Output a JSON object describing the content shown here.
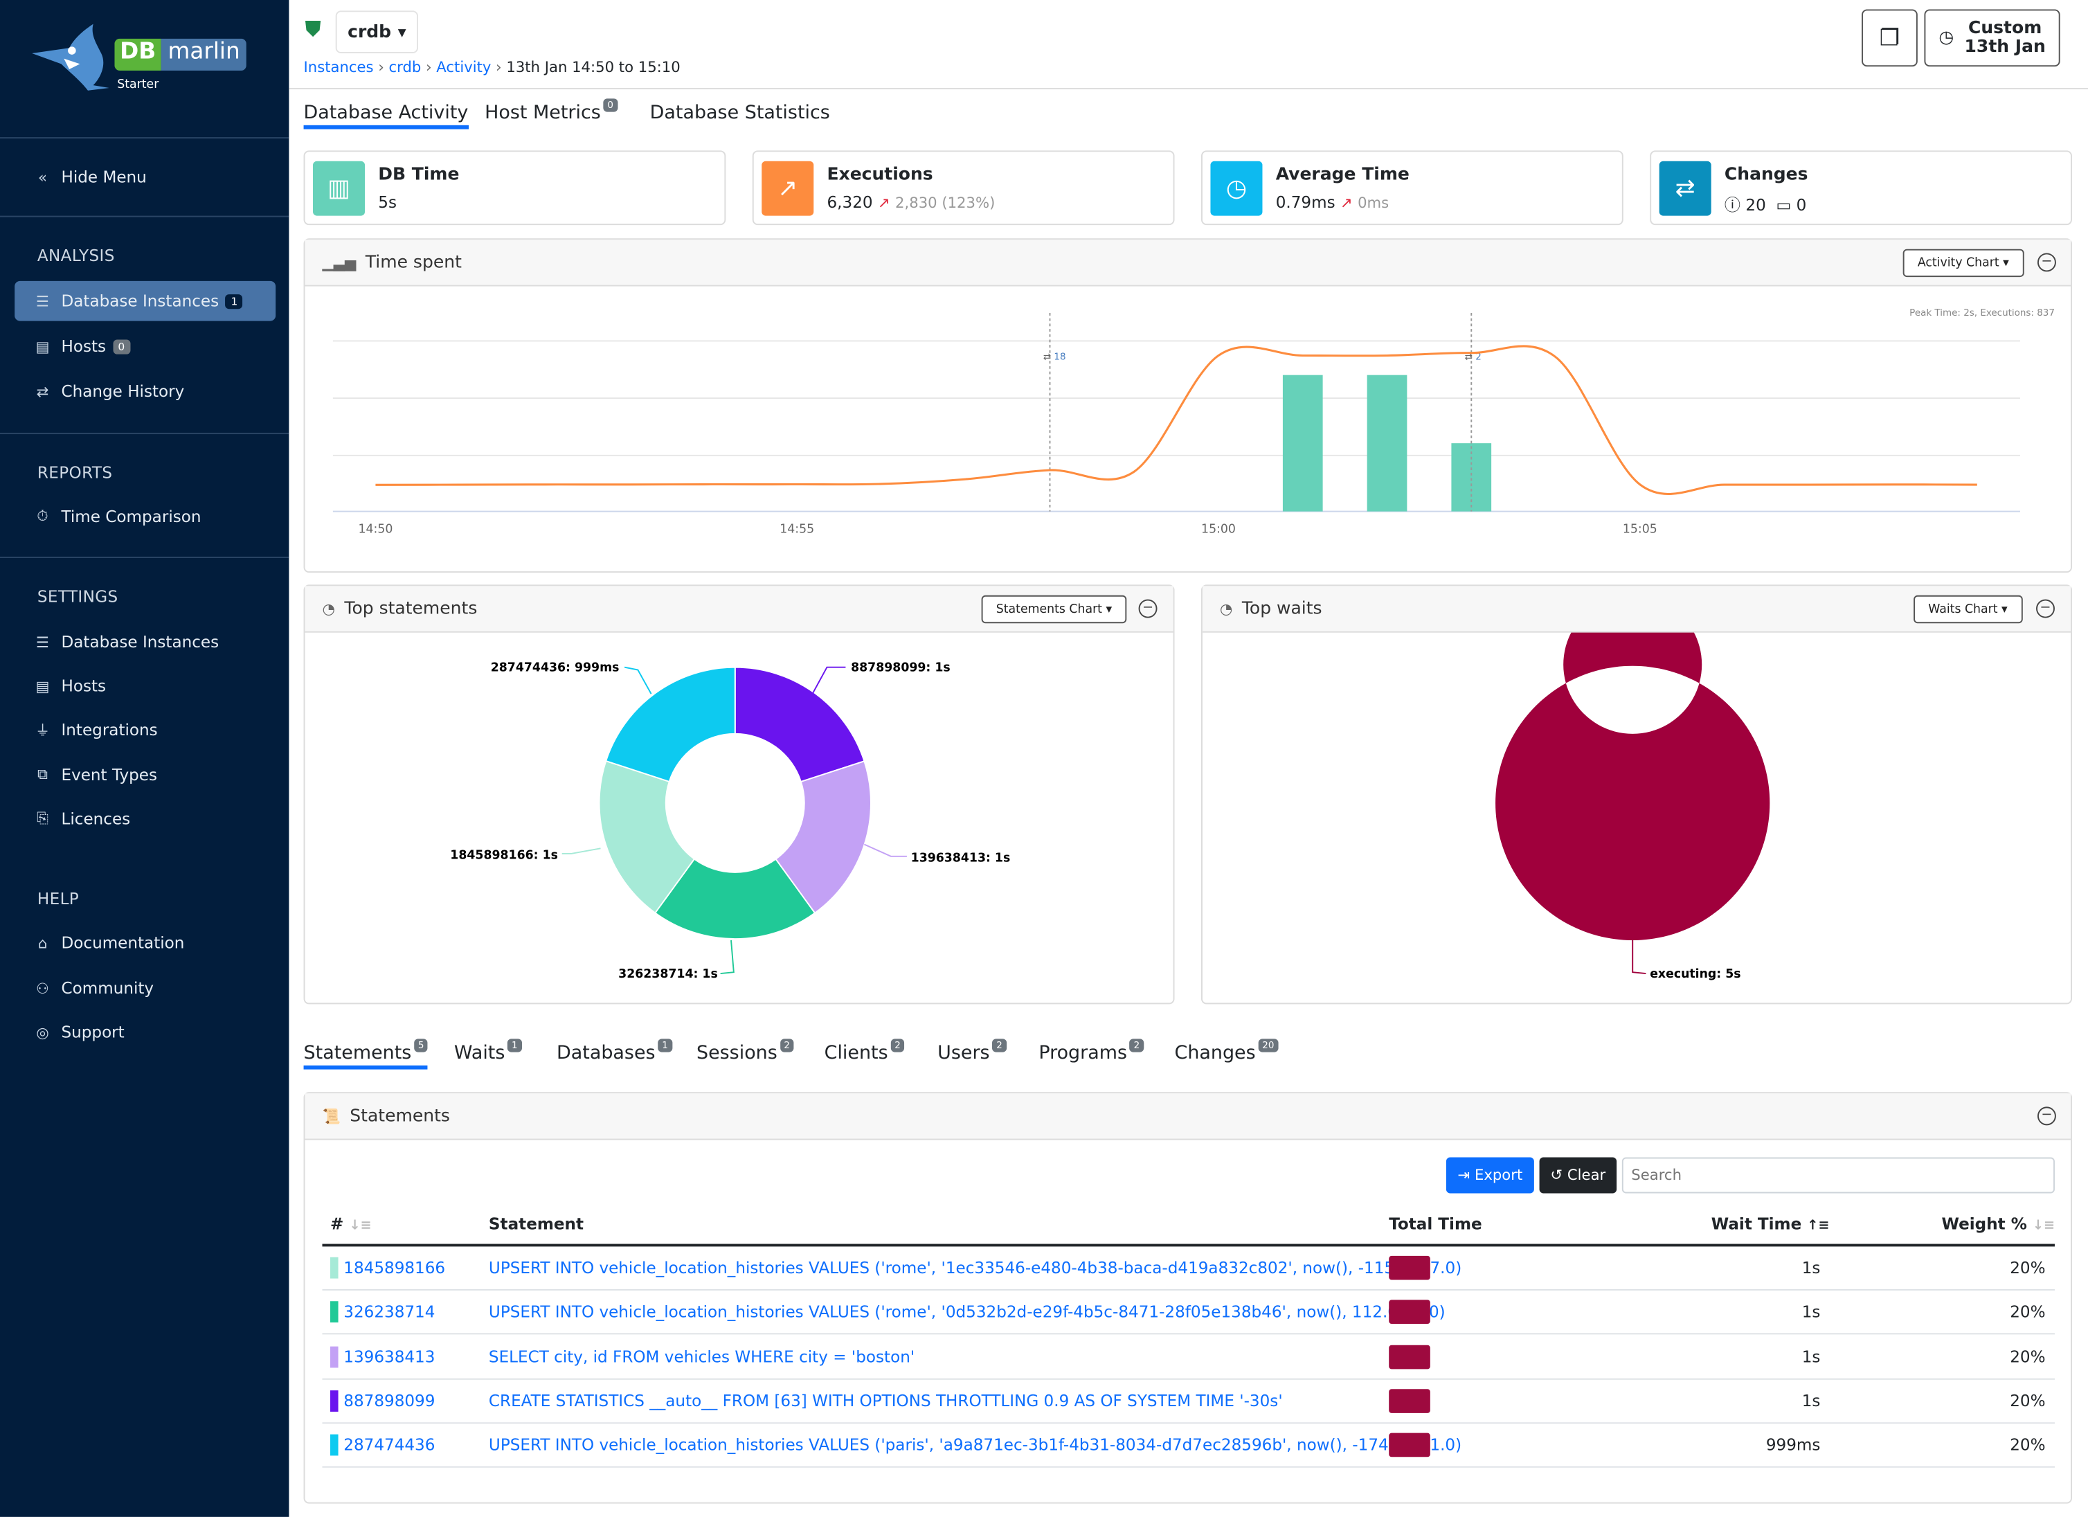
{
  "app": {
    "brand_db": "DB",
    "brand_name": "marlin",
    "edition": "Starter"
  },
  "sidebar": {
    "hide_menu": "Hide Menu",
    "sections": [
      {
        "title": "ANALYSIS",
        "items": [
          {
            "label": "Database Instances",
            "icon": "database-icon",
            "badge": "1",
            "active": true
          },
          {
            "label": "Hosts",
            "icon": "server-icon",
            "badge": "0"
          },
          {
            "label": "Change History",
            "icon": "arrows-exchange-icon"
          }
        ]
      },
      {
        "title": "REPORTS",
        "items": [
          {
            "label": "Time Comparison",
            "icon": "stopwatch-icon"
          }
        ]
      },
      {
        "title": "SETTINGS",
        "items": [
          {
            "label": "Database Instances",
            "icon": "database-icon"
          },
          {
            "label": "Hosts",
            "icon": "server-icon"
          },
          {
            "label": "Integrations",
            "icon": "plug-icon"
          },
          {
            "label": "Event Types",
            "icon": "event-types-icon"
          },
          {
            "label": "Licences",
            "icon": "licence-icon"
          }
        ]
      },
      {
        "title": "HELP",
        "items": [
          {
            "label": "Documentation",
            "icon": "documentation-icon"
          },
          {
            "label": "Community",
            "icon": "people-icon"
          },
          {
            "label": "Support",
            "icon": "lifebuoy-icon"
          }
        ]
      }
    ]
  },
  "header": {
    "instance": "crdb",
    "breadcrumb": [
      "Instances",
      "crdb",
      "Activity"
    ],
    "breadcrumb_current": "13th Jan 14:50 to 15:10",
    "time_button_line1": "Custom",
    "time_button_line2": "13th Jan"
  },
  "tabs": [
    {
      "label": "Database Activity",
      "active": true
    },
    {
      "label": "Host Metrics",
      "badge": "0"
    },
    {
      "label": "Database Statistics"
    }
  ],
  "kpis": {
    "db_time": {
      "title": "DB Time",
      "value": "5s",
      "color": "#66d1b9"
    },
    "executions": {
      "title": "Executions",
      "value": "6,320",
      "delta": "2,830 (123%)",
      "color": "#fd8c3e"
    },
    "average_time": {
      "title": "Average Time",
      "value": "0.79ms",
      "delta": "0ms",
      "color": "#0dbaf0"
    },
    "changes": {
      "title": "Changes",
      "info_count": "20",
      "calendar_count": "0",
      "color": "#0b8fbd"
    }
  },
  "time_spent": {
    "title": "Time spent",
    "dropdown": "Activity Chart",
    "peak_text": "Peak Time: 2s, Executions: 837"
  },
  "chart_data": [
    {
      "type": "bar+line",
      "x_ticks": [
        "14:50",
        "14:55",
        "15:00",
        "15:05"
      ],
      "x_range": [
        "14:50",
        "15:09"
      ],
      "grid": true,
      "series": [
        {
          "type": "bar",
          "color": "#66d1b9",
          "unit": "s",
          "ylim": [
            0,
            2.5
          ],
          "x": [
            "15:01",
            "15:02",
            "15:03"
          ],
          "values": [
            2,
            2,
            1
          ]
        },
        {
          "type": "line",
          "color": "#fd8c3e",
          "ylim": [
            0,
            900
          ],
          "x": [
            "14:50",
            "14:51",
            "14:52",
            "14:53",
            "14:54",
            "14:55",
            "14:56",
            "14:57",
            "14:58",
            "14:59",
            "15:00",
            "15:01",
            "15:02",
            "15:03",
            "15:04",
            "15:05",
            "15:06",
            "15:07",
            "15:08",
            "15:09"
          ],
          "values": [
            140,
            141,
            142,
            142,
            143,
            143,
            145,
            170,
            218,
            210,
            823,
            823,
            823,
            837,
            815,
            142,
            141,
            141,
            142,
            141
          ]
        }
      ],
      "annotations": [
        {
          "x": "14:58",
          "label": "18"
        },
        {
          "x": "15:03",
          "label": "2"
        }
      ]
    },
    {
      "type": "pie",
      "title": "Top statements",
      "donut": true,
      "slices": [
        {
          "label": "887898099: 1s",
          "value": 1,
          "color": "#6a14ee"
        },
        {
          "label": "139638413: 1s",
          "value": 1,
          "color": "#c3a1f5"
        },
        {
          "label": "326238714: 1s",
          "value": 1,
          "color": "#20c997"
        },
        {
          "label": "1845898166: 1s",
          "value": 1,
          "color": "#a6ead7"
        },
        {
          "label": "287474436: 999ms",
          "value": 0.999,
          "color": "#0dcaf0"
        }
      ]
    },
    {
      "type": "pie",
      "title": "Top waits",
      "donut": true,
      "slices": [
        {
          "label": "executing: 5s",
          "value": 5,
          "color": "#a0003c"
        }
      ]
    }
  ],
  "top_statements": {
    "title": "Top statements",
    "dropdown": "Statements Chart"
  },
  "top_waits": {
    "title": "Top waits",
    "dropdown": "Waits Chart"
  },
  "bottom_tabs": [
    {
      "label": "Statements",
      "badge": "5",
      "active": true
    },
    {
      "label": "Waits",
      "badge": "1"
    },
    {
      "label": "Databases",
      "badge": "1"
    },
    {
      "label": "Sessions",
      "badge": "2"
    },
    {
      "label": "Clients",
      "badge": "2"
    },
    {
      "label": "Users",
      "badge": "2"
    },
    {
      "label": "Programs",
      "badge": "2"
    },
    {
      "label": "Changes",
      "badge": "20"
    }
  ],
  "statements": {
    "title": "Statements",
    "export": "Export",
    "clear": "Clear",
    "search_placeholder": "Search",
    "columns": [
      "#",
      "Statement",
      "Total Time",
      "Wait Time",
      "Weight %"
    ],
    "total_time_color": "#9e0a3f",
    "rows": [
      {
        "id": "1845898166",
        "color": "#a6ead7",
        "statement": "UPSERT INTO vehicle_location_histories VALUES ('rome', '1ec33546-e480-4b38-baca-d419a832c802', now(), -115.0, 87.0)",
        "wait_time": "1s",
        "weight": "20%"
      },
      {
        "id": "326238714",
        "color": "#20c997",
        "statement": "UPSERT INTO vehicle_location_histories VALUES ('rome', '0d532b2d-e29f-4b5c-8471-28f05e138b46', now(), 112.0, -8.0)",
        "wait_time": "1s",
        "weight": "20%"
      },
      {
        "id": "139638413",
        "color": "#c3a1f5",
        "statement": "SELECT city, id FROM vehicles WHERE city = 'boston'",
        "wait_time": "1s",
        "weight": "20%"
      },
      {
        "id": "887898099",
        "color": "#6a14ee",
        "statement": "CREATE STATISTICS __auto__ FROM [63] WITH OPTIONS THROTTLING 0.9 AS OF SYSTEM TIME '-30s'",
        "wait_time": "1s",
        "weight": "20%"
      },
      {
        "id": "287474436",
        "color": "#0dcaf0",
        "statement": "UPSERT INTO vehicle_location_histories VALUES ('paris', 'a9a871ec-3b1f-4b31-8034-d7d7ec28596b', now(), -174.0, -41.0)",
        "wait_time": "999ms",
        "weight": "20%"
      }
    ]
  }
}
